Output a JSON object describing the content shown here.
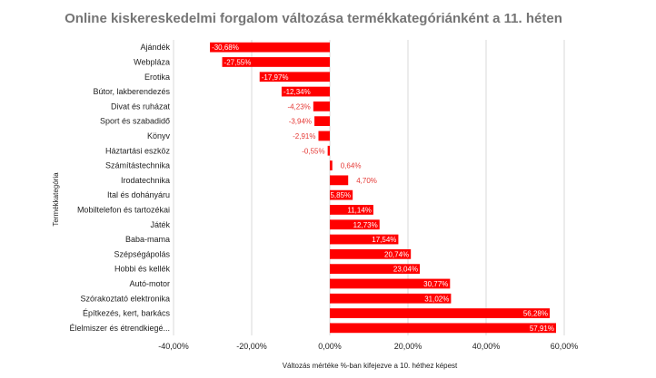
{
  "chart_data": {
    "type": "bar",
    "orientation": "horizontal",
    "title": "Online kiskereskedelmi forgalom változása termékkategóriánként a 11. héten",
    "xlabel": "Változás mértéke %-ban kifejezve a 10. héthez képest",
    "ylabel": "Termékkategória",
    "xlim": [
      -40,
      60
    ],
    "xticks": [
      "-40,00%",
      "-20,00%",
      "0,00%",
      "20,00%",
      "40,00%",
      "60,00%"
    ],
    "tick_values": [
      -40,
      -20,
      0,
      20,
      40,
      60
    ],
    "grid": true,
    "bar_color": "#ff0000",
    "categories": [
      "Ajándék",
      "Webpláza",
      "Erotika",
      "Bútor, lakberendezés",
      "Divat és ruházat",
      "Sport és szabadidő",
      "Könyv",
      "Háztartási eszköz",
      "Számítástechnika",
      "Irodatechnika",
      "Ital és dohányáru",
      "Mobiltelefon és tartozékai",
      "Játék",
      "Baba-mama",
      "Szépségápolás",
      "Hobbi és kellék",
      "Autó-motor",
      "Szórakoztató elektronika",
      "Építkezés, kert, barkács",
      "Élelmiszer és étrendkiegé..."
    ],
    "values": [
      -30.68,
      -27.55,
      -17.97,
      -12.34,
      -4.23,
      -3.94,
      -2.91,
      -0.55,
      0.64,
      4.7,
      5.85,
      11.14,
      12.73,
      17.54,
      20.74,
      23.04,
      30.77,
      31.02,
      56.28,
      57.91
    ],
    "data_labels": [
      "-30,68%",
      "-27,55%",
      "-17,97%",
      "-12,34%",
      "-4,23%",
      "-3,94%",
      "-2,91%",
      "-0,55%",
      "0,64%",
      "4,70%",
      "5,85%",
      "11,14%",
      "12,73%",
      "17,54%",
      "20,74%",
      "23,04%",
      "30,77%",
      "31,02%",
      "56,28%",
      "57,91%"
    ]
  }
}
